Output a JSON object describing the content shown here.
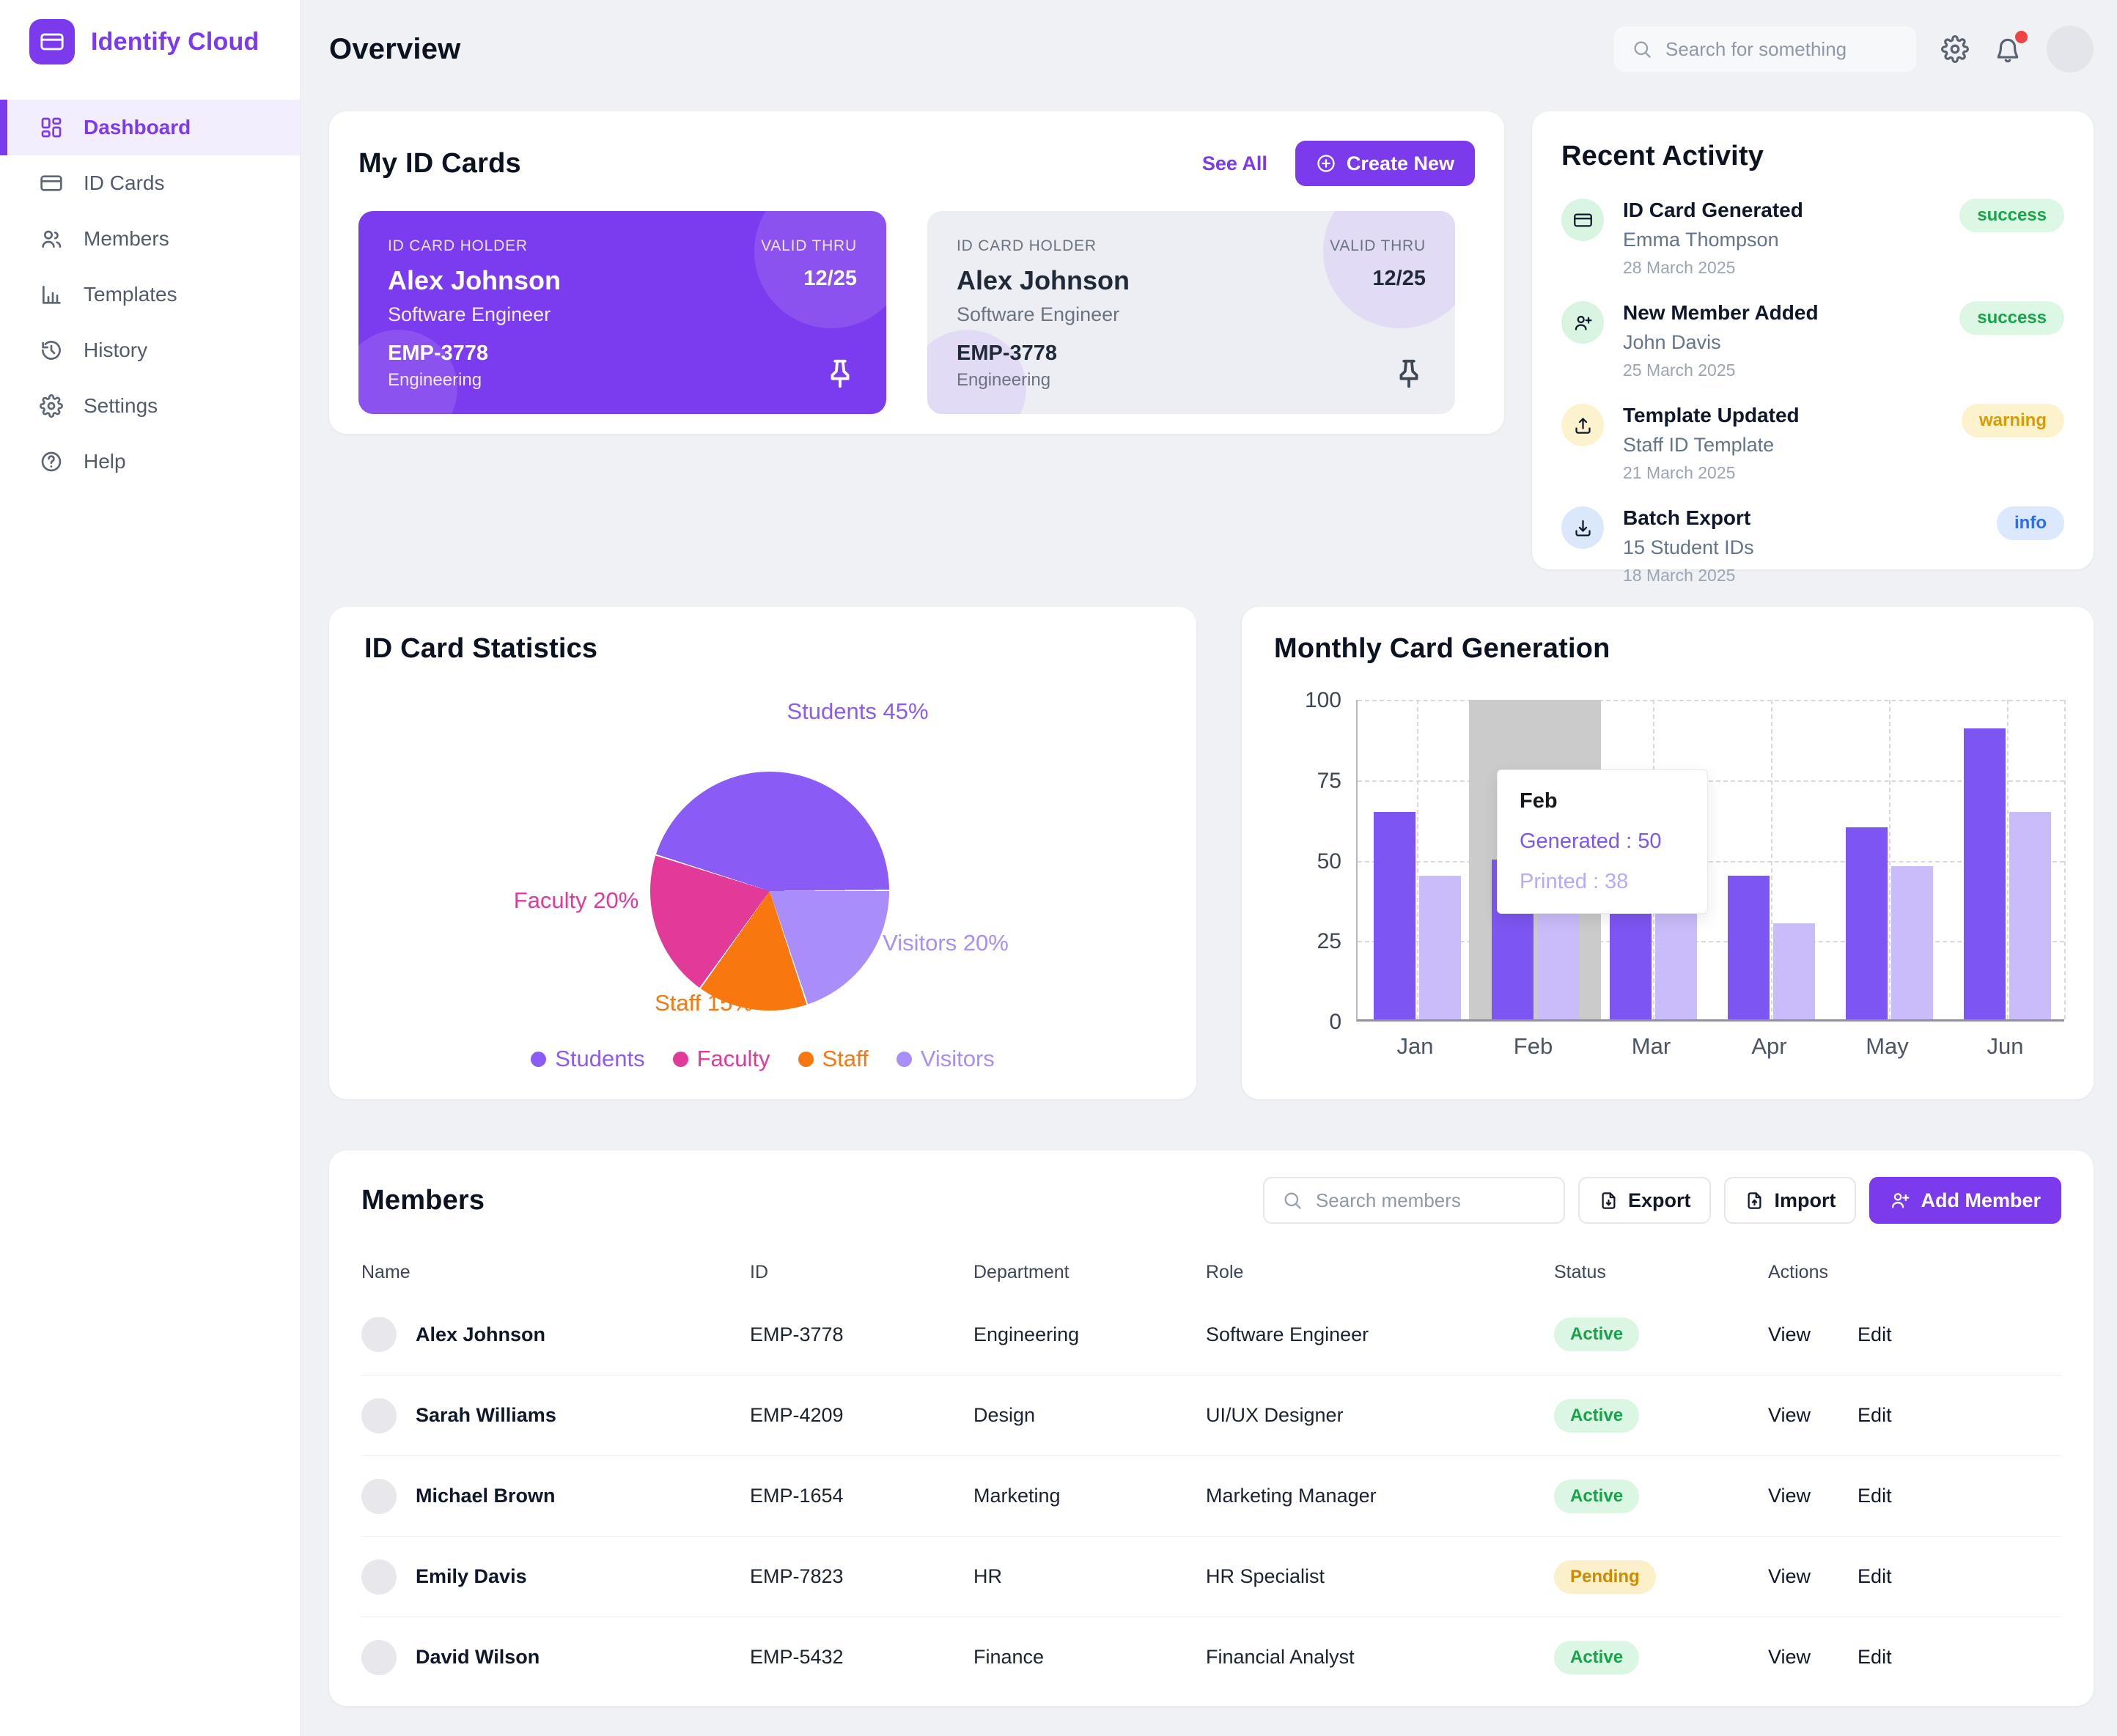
{
  "app": {
    "brand": "Identify Cloud"
  },
  "sidebar": {
    "items": [
      {
        "label": "Dashboard",
        "icon": "dashboard-icon",
        "active": true
      },
      {
        "label": "ID Cards",
        "icon": "id-card-icon",
        "active": false
      },
      {
        "label": "Members",
        "icon": "members-icon",
        "active": false
      },
      {
        "label": "Templates",
        "icon": "templates-icon",
        "active": false
      },
      {
        "label": "History",
        "icon": "history-icon",
        "active": false
      },
      {
        "label": "Settings",
        "icon": "settings-icon",
        "active": false
      },
      {
        "label": "Help",
        "icon": "help-icon",
        "active": false
      }
    ]
  },
  "header": {
    "title": "Overview",
    "search_placeholder": "Search for something"
  },
  "my_id_cards": {
    "title": "My ID Cards",
    "see_all": "See All",
    "create_new": "Create New",
    "cards": [
      {
        "theme": "purple",
        "holder_label": "ID CARD HOLDER",
        "name": "Alex Johnson",
        "role": "Software Engineer",
        "valid_label": "VALID THRU",
        "valid_value": "12/25",
        "employee_id": "EMP-3778",
        "department": "Engineering"
      },
      {
        "theme": "light",
        "holder_label": "ID CARD HOLDER",
        "name": "Alex Johnson",
        "role": "Software Engineer",
        "valid_label": "VALID THRU",
        "valid_value": "12/25",
        "employee_id": "EMP-3778",
        "department": "Engineering"
      }
    ]
  },
  "recent_activity": {
    "title": "Recent Activity",
    "items": [
      {
        "icon": "credit-card-icon",
        "icon_bg": "green",
        "title": "ID Card Generated",
        "subtitle": "Emma Thompson",
        "date": "28 March 2025",
        "badge": "success",
        "badge_type": "success"
      },
      {
        "icon": "user-plus-icon",
        "icon_bg": "green",
        "title": "New Member Added",
        "subtitle": "John Davis",
        "date": "25 March 2025",
        "badge": "success",
        "badge_type": "success"
      },
      {
        "icon": "upload-icon",
        "icon_bg": "yellow",
        "title": "Template Updated",
        "subtitle": "Staff ID Template",
        "date": "21 March 2025",
        "badge": "warning",
        "badge_type": "warning"
      },
      {
        "icon": "download-icon",
        "icon_bg": "blue",
        "title": "Batch Export",
        "subtitle": "15 Student IDs",
        "date": "18 March 2025",
        "badge": "info",
        "badge_type": "info"
      }
    ]
  },
  "statistics": {
    "title": "ID Card Statistics"
  },
  "monthly": {
    "title": "Monthly Card Generation",
    "tooltip": {
      "month": "Feb",
      "generated_text": "Generated : 50",
      "printed_text": "Printed : 38"
    }
  },
  "members": {
    "title": "Members",
    "search_placeholder": "Search members",
    "export_label": "Export",
    "import_label": "Import",
    "add_member_label": "Add Member",
    "columns": [
      "Name",
      "ID",
      "Department",
      "Role",
      "Status",
      "Actions"
    ],
    "view_label": "View",
    "edit_label": "Edit",
    "rows": [
      {
        "name": "Alex Johnson",
        "id": "EMP-3778",
        "department": "Engineering",
        "role": "Software Engineer",
        "status": "Active",
        "status_type": "active"
      },
      {
        "name": "Sarah Williams",
        "id": "EMP-4209",
        "department": "Design",
        "role": "UI/UX Designer",
        "status": "Active",
        "status_type": "active"
      },
      {
        "name": "Michael Brown",
        "id": "EMP-1654",
        "department": "Marketing",
        "role": "Marketing Manager",
        "status": "Active",
        "status_type": "active"
      },
      {
        "name": "Emily Davis",
        "id": "EMP-7823",
        "department": "HR",
        "role": "HR Specialist",
        "status": "Pending",
        "status_type": "pending"
      },
      {
        "name": "David Wilson",
        "id": "EMP-5432",
        "department": "Finance",
        "role": "Financial Analyst",
        "status": "Active",
        "status_type": "active"
      }
    ]
  },
  "chart_data": [
    {
      "type": "pie",
      "title": "ID Card Statistics",
      "labels": [
        "Students",
        "Faculty",
        "Staff",
        "Visitors"
      ],
      "values": [
        45,
        20,
        15,
        20
      ],
      "unit": "%",
      "colors": [
        "#8a5cf5",
        "#e23a98",
        "#f8780f",
        "#a98df8"
      ],
      "labels_display": [
        "Students 45%",
        "Faculty 20%",
        "Staff 15%",
        "Visitors 20%"
      ],
      "start_angle_deg": -72,
      "clockwise_order": [
        0,
        3,
        2,
        1
      ],
      "legend_position": "bottom"
    },
    {
      "type": "bar",
      "title": "Monthly Card Generation",
      "categories": [
        "Jan",
        "Feb",
        "Mar",
        "Apr",
        "May",
        "Jun"
      ],
      "series": [
        {
          "name": "Generated",
          "color": "#7d55f2",
          "values": [
            65,
            50,
            51,
            45,
            60,
            91
          ]
        },
        {
          "name": "Printed",
          "color": "#cabbfb",
          "values": [
            45,
            38,
            51,
            30,
            48,
            65
          ]
        }
      ],
      "ylim": [
        0,
        100
      ],
      "yticks": [
        0,
        25,
        50,
        75,
        100
      ],
      "grid": "dashed",
      "highlighted_category": "Feb",
      "tooltip": {
        "category": "Feb",
        "lines": [
          {
            "label": "Generated",
            "value": 50
          },
          {
            "label": "Printed",
            "value": 38
          }
        ]
      }
    }
  ],
  "colors": {
    "primary": "#7c3aed",
    "card_purple": "#7b3bee",
    "success_text": "#19a34a",
    "warning_text": "#d99b05",
    "info_text": "#2f6bef",
    "pending_text": "#cd8a04"
  }
}
